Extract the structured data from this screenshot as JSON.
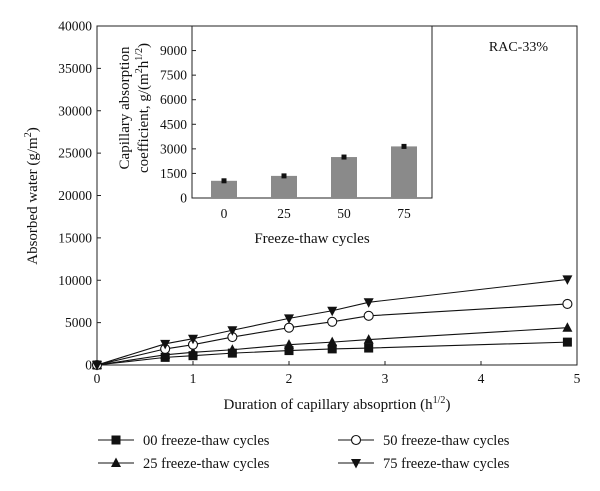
{
  "chart_data": [
    {
      "type": "line",
      "annotation": "RAC-33%",
      "xlabel": "Duration of capillary absoprtion (h",
      "xlabel_sup": "1/2",
      "xlabel_end": ")",
      "ylabel": "Absorbed water (g/m",
      "ylabel_sup": "2",
      "ylabel_end": ")",
      "xlim": [
        0,
        5
      ],
      "ylim": [
        0,
        40000
      ],
      "x_ticks": [
        0,
        1,
        2,
        3,
        4,
        5
      ],
      "y_ticks": [
        0,
        5000,
        10000,
        15000,
        20000,
        25000,
        30000,
        35000,
        40000
      ],
      "legend_position": "bottom",
      "series": [
        {
          "name": "00 freeze-thaw cycles",
          "marker": "square",
          "x": [
            0,
            0.71,
            1.0,
            1.41,
            2.0,
            2.45,
            2.83,
            4.9
          ],
          "y": [
            0,
            900,
            1100,
            1400,
            1700,
            1900,
            2000,
            2700
          ]
        },
        {
          "name": "25 freeze-thaw cycles",
          "marker": "triangle-up",
          "x": [
            0,
            0.71,
            1.0,
            1.41,
            2.0,
            2.45,
            2.83,
            4.9
          ],
          "y": [
            0,
            1200,
            1500,
            1800,
            2400,
            2700,
            3000,
            4400
          ]
        },
        {
          "name": "50 freeze-thaw cycles",
          "marker": "open-circle",
          "x": [
            0,
            0.71,
            1.0,
            1.41,
            2.0,
            2.45,
            2.83,
            4.9
          ],
          "y": [
            0,
            1900,
            2400,
            3300,
            4400,
            5100,
            5800,
            7200
          ]
        },
        {
          "name": "75 freeze-thaw cycles",
          "marker": "triangle-down",
          "x": [
            0,
            0.71,
            1.0,
            1.41,
            2.0,
            2.45,
            2.83,
            4.9
          ],
          "y": [
            0,
            2500,
            3100,
            4100,
            5500,
            6400,
            7400,
            10100
          ]
        }
      ]
    },
    {
      "type": "bar",
      "categories": [
        "0",
        "25",
        "50",
        "75"
      ],
      "values": [
        1050,
        1350,
        2500,
        3150
      ],
      "errors": [
        70,
        70,
        70,
        70
      ],
      "xlabel": "Freeze-thaw cycles",
      "ylabel_line1": "Capillary absorption",
      "ylabel_line2": "coefficient, g/(m",
      "ylabel_sup2": "2",
      "ylabel_mid": "h",
      "ylabel_sup": "1/2",
      "ylabel_end": ")",
      "ylim": [
        0,
        10500
      ],
      "y_ticks": [
        0,
        1500,
        3000,
        4500,
        6000,
        7500,
        9000
      ],
      "bar_color": "#8a8a8a"
    }
  ]
}
